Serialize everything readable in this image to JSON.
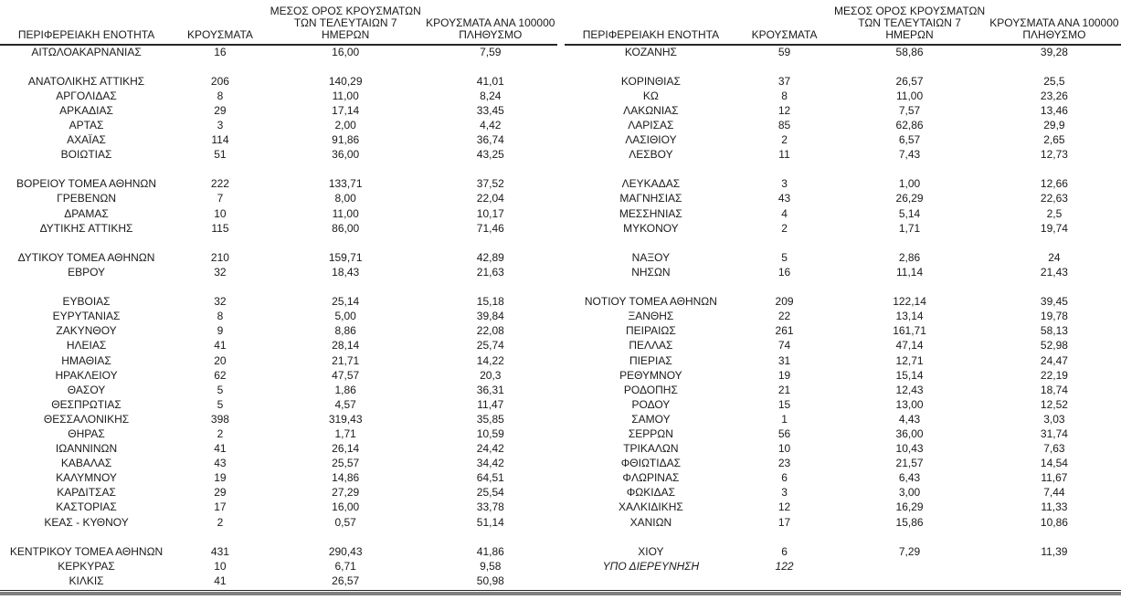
{
  "column_headers": {
    "region": "ΠΕΡΙΦΕΡΕΙΑΚΗ ΕΝΟΤΗΤΑ",
    "cases": "ΚΡΟΥΣΜΑΤΑ",
    "avg7_line1": "ΜΕΣΟΣ ΟΡΟΣ ΚΡΟΥΣΜΑΤΩΝ",
    "avg7_line2": "ΤΩΝ ΤΕΛΕΥΤΑΙΩΝ 7",
    "avg7_line3": "ΗΜΕΡΩΝ",
    "per100k_line1": "ΚΡΟΥΣΜΑΤΑ ΑΝΑ 100000",
    "per100k_line2": "ΠΛΗΘΥΣΜΟ"
  },
  "styles": {
    "text_color": "#1a1a1a",
    "rule_color": "#262626",
    "thick_rule_color": "#808080",
    "background": "#ffffff"
  },
  "tables": [
    {
      "name": "left",
      "rows": [
        {
          "region": "ΑΙΤΩΛΟΑΚΑΡΝΑΝΙΑΣ",
          "cases": "16",
          "avg7": "16,00",
          "per100k": "7,59"
        },
        {
          "region": "",
          "cases": "",
          "avg7": "",
          "per100k": ""
        },
        {
          "region": "ΑΝΑΤΟΛΙΚΗΣ ΑΤΤΙΚΗΣ",
          "cases": "206",
          "avg7": "140,29",
          "per100k": "41,01"
        },
        {
          "region": "ΑΡΓΟΛΙΔΑΣ",
          "cases": "8",
          "avg7": "11,00",
          "per100k": "8,24"
        },
        {
          "region": "ΑΡΚΑΔΙΑΣ",
          "cases": "29",
          "avg7": "17,14",
          "per100k": "33,45"
        },
        {
          "region": "ΑΡΤΑΣ",
          "cases": "3",
          "avg7": "2,00",
          "per100k": "4,42"
        },
        {
          "region": "ΑΧΑΪΑΣ",
          "cases": "114",
          "avg7": "91,86",
          "per100k": "36,74"
        },
        {
          "region": "ΒΟΙΩΤΙΑΣ",
          "cases": "51",
          "avg7": "36,00",
          "per100k": "43,25"
        },
        {
          "region": "",
          "cases": "",
          "avg7": "",
          "per100k": ""
        },
        {
          "region": "ΒΟΡΕΙΟΥ ΤΟΜΕΑ ΑΘΗΝΩΝ",
          "cases": "222",
          "avg7": "133,71",
          "per100k": "37,52"
        },
        {
          "region": "ΓΡΕΒΕΝΩΝ",
          "cases": "7",
          "avg7": "8,00",
          "per100k": "22,04"
        },
        {
          "region": "ΔΡΑΜΑΣ",
          "cases": "10",
          "avg7": "11,00",
          "per100k": "10,17"
        },
        {
          "region": "ΔΥΤΙΚΗΣ ΑΤΤΙΚΗΣ",
          "cases": "115",
          "avg7": "86,00",
          "per100k": "71,46"
        },
        {
          "region": "",
          "cases": "",
          "avg7": "",
          "per100k": ""
        },
        {
          "region": "ΔΥΤΙΚΟΥ ΤΟΜΕΑ ΑΘΗΝΩΝ",
          "cases": "210",
          "avg7": "159,71",
          "per100k": "42,89"
        },
        {
          "region": "ΕΒΡΟΥ",
          "cases": "32",
          "avg7": "18,43",
          "per100k": "21,63"
        },
        {
          "region": "",
          "cases": "",
          "avg7": "",
          "per100k": ""
        },
        {
          "region": "ΕΥΒΟΙΑΣ",
          "cases": "32",
          "avg7": "25,14",
          "per100k": "15,18"
        },
        {
          "region": "ΕΥΡΥΤΑΝΙΑΣ",
          "cases": "8",
          "avg7": "5,00",
          "per100k": "39,84"
        },
        {
          "region": "ΖΑΚΥΝΘΟΥ",
          "cases": "9",
          "avg7": "8,86",
          "per100k": "22,08"
        },
        {
          "region": "ΗΛΕΙΑΣ",
          "cases": "41",
          "avg7": "28,14",
          "per100k": "25,74"
        },
        {
          "region": "ΗΜΑΘΙΑΣ",
          "cases": "20",
          "avg7": "21,71",
          "per100k": "14,22"
        },
        {
          "region": "ΗΡΑΚΛΕΙΟΥ",
          "cases": "62",
          "avg7": "47,57",
          "per100k": "20,3"
        },
        {
          "region": "ΘΑΣΟΥ",
          "cases": "5",
          "avg7": "1,86",
          "per100k": "36,31"
        },
        {
          "region": "ΘΕΣΠΡΩΤΙΑΣ",
          "cases": "5",
          "avg7": "4,57",
          "per100k": "11,47"
        },
        {
          "region": "ΘΕΣΣΑΛΟΝΙΚΗΣ",
          "cases": "398",
          "avg7": "319,43",
          "per100k": "35,85"
        },
        {
          "region": "ΘΗΡΑΣ",
          "cases": "2",
          "avg7": "1,71",
          "per100k": "10,59"
        },
        {
          "region": "ΙΩΑΝΝΙΝΩΝ",
          "cases": "41",
          "avg7": "26,14",
          "per100k": "24,42"
        },
        {
          "region": "ΚΑΒΑΛΑΣ",
          "cases": "43",
          "avg7": "25,57",
          "per100k": "34,42"
        },
        {
          "region": "ΚΑΛΥΜΝΟΥ",
          "cases": "19",
          "avg7": "14,86",
          "per100k": "64,51"
        },
        {
          "region": "ΚΑΡΔΙΤΣΑΣ",
          "cases": "29",
          "avg7": "27,29",
          "per100k": "25,54"
        },
        {
          "region": "ΚΑΣΤΟΡΙΑΣ",
          "cases": "17",
          "avg7": "16,00",
          "per100k": "33,78"
        },
        {
          "region": "ΚΕΑΣ - ΚΥΘΝΟΥ",
          "cases": "2",
          "avg7": "0,57",
          "per100k": "51,14"
        },
        {
          "region": "",
          "cases": "",
          "avg7": "",
          "per100k": ""
        },
        {
          "region": "ΚΕΝΤΡΙΚΟΥ ΤΟΜΕΑ ΑΘΗΝΩΝ",
          "cases": "431",
          "avg7": "290,43",
          "per100k": "41,86"
        },
        {
          "region": "ΚΕΡΚΥΡΑΣ",
          "cases": "10",
          "avg7": "6,71",
          "per100k": "9,58"
        },
        {
          "region": "ΚΙΛΚΙΣ",
          "cases": "41",
          "avg7": "26,57",
          "per100k": "50,98"
        }
      ]
    },
    {
      "name": "right",
      "rows": [
        {
          "region": "ΚΟΖΑΝΗΣ",
          "cases": "59",
          "avg7": "58,86",
          "per100k": "39,28"
        },
        {
          "region": "",
          "cases": "",
          "avg7": "",
          "per100k": ""
        },
        {
          "region": "ΚΟΡΙΝΘΙΑΣ",
          "cases": "37",
          "avg7": "26,57",
          "per100k": "25,5"
        },
        {
          "region": "ΚΩ",
          "cases": "8",
          "avg7": "11,00",
          "per100k": "23,26"
        },
        {
          "region": "ΛΑΚΩΝΙΑΣ",
          "cases": "12",
          "avg7": "7,57",
          "per100k": "13,46"
        },
        {
          "region": "ΛΑΡΙΣΑΣ",
          "cases": "85",
          "avg7": "62,86",
          "per100k": "29,9"
        },
        {
          "region": "ΛΑΣΙΘΙΟΥ",
          "cases": "2",
          "avg7": "6,57",
          "per100k": "2,65"
        },
        {
          "region": "ΛΕΣΒΟΥ",
          "cases": "11",
          "avg7": "7,43",
          "per100k": "12,73"
        },
        {
          "region": "",
          "cases": "",
          "avg7": "",
          "per100k": ""
        },
        {
          "region": "ΛΕΥΚΑΔΑΣ",
          "cases": "3",
          "avg7": "1,00",
          "per100k": "12,66"
        },
        {
          "region": "ΜΑΓΝΗΣΙΑΣ",
          "cases": "43",
          "avg7": "26,29",
          "per100k": "22,63"
        },
        {
          "region": "ΜΕΣΣΗΝΙΑΣ",
          "cases": "4",
          "avg7": "5,14",
          "per100k": "2,5"
        },
        {
          "region": "ΜΥΚΟΝΟΥ",
          "cases": "2",
          "avg7": "1,71",
          "per100k": "19,74"
        },
        {
          "region": "",
          "cases": "",
          "avg7": "",
          "per100k": ""
        },
        {
          "region": "ΝΑΞΟΥ",
          "cases": "5",
          "avg7": "2,86",
          "per100k": "24"
        },
        {
          "region": "ΝΗΣΩΝ",
          "cases": "16",
          "avg7": "11,14",
          "per100k": "21,43"
        },
        {
          "region": "",
          "cases": "",
          "avg7": "",
          "per100k": ""
        },
        {
          "region": "ΝΟΤΙΟΥ ΤΟΜΕΑ ΑΘΗΝΩΝ",
          "cases": "209",
          "avg7": "122,14",
          "per100k": "39,45"
        },
        {
          "region": "ΞΑΝΘΗΣ",
          "cases": "22",
          "avg7": "13,14",
          "per100k": "19,78"
        },
        {
          "region": "ΠΕΙΡΑΙΩΣ",
          "cases": "261",
          "avg7": "161,71",
          "per100k": "58,13"
        },
        {
          "region": "ΠΕΛΛΑΣ",
          "cases": "74",
          "avg7": "47,14",
          "per100k": "52,98"
        },
        {
          "region": "ΠΙΕΡΙΑΣ",
          "cases": "31",
          "avg7": "12,71",
          "per100k": "24,47"
        },
        {
          "region": "ΡΕΘΥΜΝΟΥ",
          "cases": "19",
          "avg7": "15,14",
          "per100k": "22,19"
        },
        {
          "region": "ΡΟΔΟΠΗΣ",
          "cases": "21",
          "avg7": "12,43",
          "per100k": "18,74"
        },
        {
          "region": "ΡΟΔΟΥ",
          "cases": "15",
          "avg7": "13,00",
          "per100k": "12,52"
        },
        {
          "region": "ΣΑΜΟΥ",
          "cases": "1",
          "avg7": "4,43",
          "per100k": "3,03"
        },
        {
          "region": "ΣΕΡΡΩΝ",
          "cases": "56",
          "avg7": "36,00",
          "per100k": "31,74"
        },
        {
          "region": "ΤΡΙΚΑΛΩΝ",
          "cases": "10",
          "avg7": "10,43",
          "per100k": "7,63"
        },
        {
          "region": "ΦΘΙΩΤΙΔΑΣ",
          "cases": "23",
          "avg7": "21,57",
          "per100k": "14,54"
        },
        {
          "region": "ΦΛΩΡΙΝΑΣ",
          "cases": "6",
          "avg7": "6,43",
          "per100k": "11,67"
        },
        {
          "region": "ΦΩΚΙΔΑΣ",
          "cases": "3",
          "avg7": "3,00",
          "per100k": "7,44"
        },
        {
          "region": "ΧΑΛΚΙΔΙΚΗΣ",
          "cases": "12",
          "avg7": "16,29",
          "per100k": "11,33"
        },
        {
          "region": "ΧΑΝΙΩΝ",
          "cases": "17",
          "avg7": "15,86",
          "per100k": "10,86"
        },
        {
          "region": "",
          "cases": "",
          "avg7": "",
          "per100k": ""
        },
        {
          "region": "ΧΙΟΥ",
          "cases": "6",
          "avg7": "7,29",
          "per100k": "11,39"
        },
        {
          "region": "ΥΠΟ ΔΙΕΡΕΥΝΗΣΗ",
          "cases": "122",
          "avg7": "",
          "per100k": "",
          "italic": true
        },
        {
          "region": "",
          "cases": "",
          "avg7": "",
          "per100k": ""
        }
      ]
    }
  ]
}
